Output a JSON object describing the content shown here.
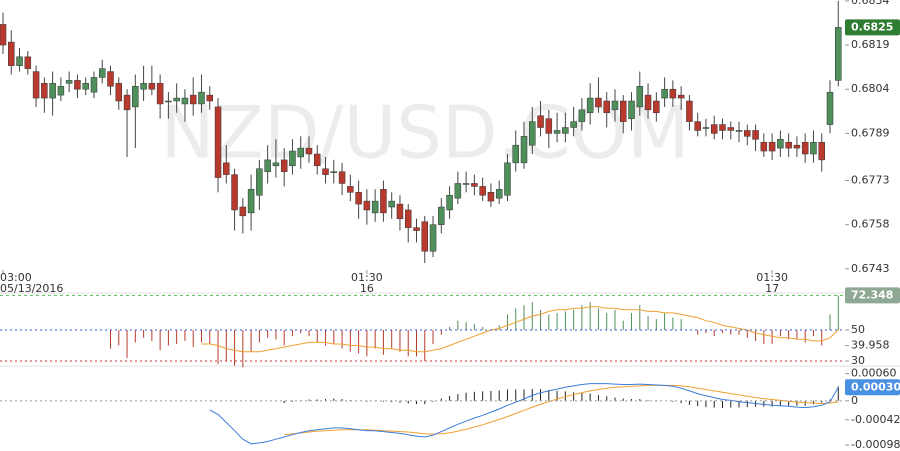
{
  "chart_data": [
    {
      "type": "candlestick",
      "watermark": "NZD/USD.COM",
      "up_color": "#4f8f5b",
      "down_color": "#b83a2e",
      "ylim": [
        0.67348,
        0.68343
      ],
      "yticks": [
        0.6834,
        0.6819,
        0.6804,
        0.6789,
        0.6773,
        0.6758,
        0.6743
      ],
      "current_value": 0.6825,
      "current_color": "#2e7d32",
      "xticks": [
        {
          "value": 0,
          "label": "03:00"
        },
        {
          "value": 44,
          "label": "01:30"
        },
        {
          "value": 93,
          "label": "01:30"
        }
      ],
      "xticks_date": [
        {
          "value": 0,
          "label": "05/13/2016"
        },
        {
          "value": 44,
          "label": "16"
        },
        {
          "value": 93,
          "label": "17"
        }
      ],
      "open": [
        0.6826,
        0.682,
        0.6812,
        0.6815,
        0.681,
        0.6806,
        0.6801,
        0.6802,
        0.6806,
        0.6807,
        0.6804,
        0.6803,
        0.6808,
        0.681,
        0.6806,
        0.6802,
        0.6798,
        0.6804,
        0.6806,
        0.6806,
        0.68,
        0.68,
        0.6799,
        0.6802,
        0.6799,
        0.6802,
        0.6798,
        0.6779,
        0.6775,
        0.6764,
        0.6762,
        0.6768,
        0.6776,
        0.6778,
        0.678,
        0.6778,
        0.6781,
        0.6784,
        0.6782,
        0.6777,
        0.6776,
        0.6776,
        0.6771,
        0.6769,
        0.6766,
        0.6762,
        0.677,
        0.6764,
        0.6765,
        0.6763,
        0.6757,
        0.6759,
        0.6749,
        0.6758,
        0.6763,
        0.6767,
        0.6772,
        0.6772,
        0.6771,
        0.6769,
        0.6767,
        0.6768,
        0.6779,
        0.6779,
        0.6785,
        0.6795,
        0.6794,
        0.6789,
        0.6789,
        0.6791,
        0.6793,
        0.6796,
        0.6801,
        0.68,
        0.6797,
        0.68,
        0.6794,
        0.6798,
        0.6802,
        0.68,
        0.6801,
        0.6804,
        0.6802,
        0.68,
        0.6793,
        0.6791,
        0.6792,
        0.6792,
        0.6791,
        0.679,
        0.679,
        0.679,
        0.6786,
        0.6786,
        0.6784,
        0.6786,
        0.6785,
        0.6786,
        0.6782,
        0.6786,
        0.6792,
        0.6807
      ],
      "high": [
        0.683,
        0.6824,
        0.6818,
        0.6817,
        0.6812,
        0.6808,
        0.681,
        0.6808,
        0.681,
        0.6809,
        0.6808,
        0.681,
        0.6814,
        0.6812,
        0.6808,
        0.6804,
        0.6809,
        0.6812,
        0.6812,
        0.6809,
        0.6803,
        0.6806,
        0.6804,
        0.6808,
        0.6809,
        0.6805,
        0.6801,
        0.6785,
        0.6777,
        0.6767,
        0.6775,
        0.678,
        0.6785,
        0.6787,
        0.6784,
        0.6787,
        0.6788,
        0.6788,
        0.6785,
        0.6781,
        0.678,
        0.6779,
        0.6775,
        0.6773,
        0.677,
        0.677,
        0.6773,
        0.6769,
        0.6768,
        0.6765,
        0.676,
        0.6761,
        0.6761,
        0.6767,
        0.6771,
        0.6776,
        0.6776,
        0.6775,
        0.6774,
        0.6772,
        0.6773,
        0.6782,
        0.679,
        0.6793,
        0.6798,
        0.68,
        0.6797,
        0.6796,
        0.6796,
        0.6798,
        0.6801,
        0.6806,
        0.6808,
        0.6803,
        0.6804,
        0.6802,
        0.6803,
        0.681,
        0.6806,
        0.6803,
        0.6808,
        0.6807,
        0.6805,
        0.6802,
        0.6796,
        0.6794,
        0.6795,
        0.6794,
        0.6793,
        0.6793,
        0.6792,
        0.6792,
        0.6789,
        0.6789,
        0.679,
        0.6789,
        0.6788,
        0.6789,
        0.679,
        0.6789,
        0.6807,
        0.6834
      ],
      "low": [
        0.6816,
        0.6809,
        0.681,
        0.6809,
        0.6798,
        0.6796,
        0.6795,
        0.68,
        0.6803,
        0.6801,
        0.6802,
        0.6801,
        0.6806,
        0.6802,
        0.6797,
        0.6781,
        0.6784,
        0.68,
        0.6802,
        0.6794,
        0.6794,
        0.6796,
        0.6793,
        0.6795,
        0.6796,
        0.6797,
        0.6769,
        0.6772,
        0.6756,
        0.6755,
        0.6756,
        0.6763,
        0.6772,
        0.6774,
        0.6771,
        0.6775,
        0.6777,
        0.6779,
        0.6775,
        0.6772,
        0.6772,
        0.6768,
        0.6766,
        0.676,
        0.6758,
        0.6759,
        0.6759,
        0.676,
        0.6756,
        0.6752,
        0.6752,
        0.6745,
        0.6747,
        0.6755,
        0.676,
        0.6765,
        0.6769,
        0.6768,
        0.6766,
        0.6764,
        0.6765,
        0.6766,
        0.6776,
        0.6777,
        0.6782,
        0.6788,
        0.6784,
        0.6786,
        0.6786,
        0.6788,
        0.679,
        0.6792,
        0.6796,
        0.6791,
        0.6793,
        0.6789,
        0.679,
        0.6795,
        0.6794,
        0.6793,
        0.6798,
        0.6798,
        0.6797,
        0.679,
        0.6788,
        0.6788,
        0.6787,
        0.6787,
        0.6787,
        0.6786,
        0.6785,
        0.6783,
        0.6781,
        0.678,
        0.6781,
        0.6781,
        0.6781,
        0.6779,
        0.6779,
        0.6776,
        0.6789,
        0.6805
      ],
      "close": [
        0.6819,
        0.6812,
        0.6815,
        0.6811,
        0.6801,
        0.6801,
        0.6806,
        0.6805,
        0.6807,
        0.6804,
        0.6806,
        0.6808,
        0.6811,
        0.6805,
        0.68,
        0.6797,
        0.6805,
        0.6806,
        0.6804,
        0.6799,
        0.68,
        0.6801,
        0.6801,
        0.6799,
        0.6803,
        0.68,
        0.6774,
        0.6775,
        0.6763,
        0.6761,
        0.677,
        0.6777,
        0.678,
        0.6779,
        0.6776,
        0.6783,
        0.6784,
        0.6782,
        0.6778,
        0.6775,
        0.6776,
        0.6772,
        0.6769,
        0.6765,
        0.6763,
        0.6766,
        0.6762,
        0.6766,
        0.676,
        0.6757,
        0.6756,
        0.6749,
        0.6758,
        0.6764,
        0.6768,
        0.6772,
        0.6772,
        0.6771,
        0.6768,
        0.6766,
        0.677,
        0.6779,
        0.6785,
        0.6788,
        0.6793,
        0.6791,
        0.6789,
        0.679,
        0.6791,
        0.6793,
        0.6797,
        0.6801,
        0.6798,
        0.6796,
        0.68,
        0.6793,
        0.68,
        0.6805,
        0.6797,
        0.6796,
        0.6804,
        0.6801,
        0.6801,
        0.6793,
        0.679,
        0.6791,
        0.6789,
        0.679,
        0.679,
        0.679,
        0.6788,
        0.6787,
        0.6783,
        0.6783,
        0.6787,
        0.6784,
        0.6784,
        0.6782,
        0.6786,
        0.678,
        0.6803,
        0.6825
      ]
    },
    {
      "type": "rsi",
      "ylim": [
        26.8,
        74.5
      ],
      "yticks": [
        50,
        39.958,
        30
      ],
      "tick_line_colors": [
        "#3355dd",
        null,
        "#cc3333"
      ],
      "current_value": 72.348,
      "current_color": "#8fa893",
      "up_color": "#4f8f5b",
      "down_color": "#b83a2e",
      "ma_color": "#f0a030",
      "values": [
        null,
        null,
        null,
        null,
        null,
        null,
        null,
        null,
        null,
        null,
        null,
        null,
        null,
        38,
        40,
        32,
        42,
        45,
        43,
        37,
        40,
        41,
        43,
        39,
        42,
        41,
        28,
        30,
        27,
        26,
        36,
        42,
        45,
        44,
        40,
        46,
        48,
        46,
        42,
        40,
        41,
        38,
        36,
        35,
        33,
        38,
        34,
        38,
        36,
        33,
        33,
        30,
        41,
        47,
        52,
        56,
        55,
        54,
        52,
        50,
        53,
        60,
        64,
        66,
        68,
        63,
        60,
        61,
        62,
        63,
        66,
        68,
        64,
        61,
        63,
        56,
        61,
        66,
        59,
        57,
        61,
        58,
        57,
        50,
        47,
        48,
        46,
        48,
        47,
        47,
        45,
        43,
        41,
        41,
        46,
        44,
        44,
        42,
        46,
        40,
        60,
        72.348
      ],
      "ma": [
        null,
        null,
        null,
        null,
        null,
        null,
        null,
        null,
        null,
        null,
        null,
        null,
        null,
        null,
        null,
        null,
        null,
        null,
        null,
        null,
        null,
        null,
        null,
        null,
        41,
        41,
        40,
        38,
        37,
        36,
        36,
        36,
        37,
        38,
        39,
        40,
        41,
        42,
        42,
        42,
        41,
        41,
        40,
        40,
        39,
        39,
        38,
        38,
        37,
        37,
        36,
        36,
        37,
        38,
        40,
        42,
        44,
        46,
        48,
        50,
        51,
        53,
        55,
        57,
        59,
        60,
        62,
        63,
        63,
        64,
        64,
        65,
        65,
        64,
        64,
        63,
        63,
        63,
        62,
        62,
        61,
        61,
        60,
        59,
        58,
        56,
        55,
        53,
        52,
        51,
        50,
        48,
        47,
        46,
        45,
        45,
        44,
        44,
        43,
        43,
        45,
        50
      ]
    },
    {
      "type": "macd",
      "ylim": [
        -0.00111,
        0.00077
      ],
      "yticks": [
        {
          "value": 0.0006,
          "label": "0.00060"
        },
        0,
        -0.00042,
        -0.00098
      ],
      "tick_line_colors": [
        null,
        "#999999",
        null,
        null
      ],
      "current_value": {
        "value": 0.0003,
        "label": "0.00030"
      },
      "current_color": "#4a90e2",
      "macd_color": "#3b7ddd",
      "signal_color": "#f0a030",
      "hist_color": "#222222",
      "macd": [
        null,
        null,
        null,
        null,
        null,
        null,
        null,
        null,
        null,
        null,
        null,
        null,
        null,
        null,
        null,
        null,
        null,
        null,
        null,
        null,
        null,
        null,
        null,
        null,
        null,
        -0.0002,
        -0.0003,
        -0.00048,
        -0.00066,
        -0.00085,
        -0.00095,
        -0.00093,
        -0.0009,
        -0.00085,
        -0.0008,
        -0.00075,
        -0.0007,
        -0.00066,
        -0.00064,
        -0.00062,
        -0.0006,
        -0.0006,
        -0.00062,
        -0.00064,
        -0.00066,
        -0.00066,
        -0.00068,
        -0.0007,
        -0.00072,
        -0.00075,
        -0.00078,
        -0.0008,
        -0.00076,
        -0.00068,
        -0.0006,
        -0.00052,
        -0.00045,
        -0.00038,
        -0.00032,
        -0.00025,
        -0.00018,
        -0.0001,
        -3e-05,
        4e-05,
        0.00012,
        0.00018,
        0.00022,
        0.00026,
        0.0003,
        0.00033,
        0.00036,
        0.00038,
        0.00038,
        0.00038,
        0.00037,
        0.00036,
        0.00036,
        0.00037,
        0.00036,
        0.00035,
        0.00034,
        0.00032,
        0.00028,
        0.00022,
        0.00016,
        0.00011,
        7e-05,
        3e-05,
        1e-05,
        -2e-05,
        -4e-05,
        -6e-05,
        -8e-05,
        -0.0001,
        -0.00011,
        -0.00012,
        -0.00014,
        -0.00015,
        -0.00013,
        -0.0001,
        -2e-05,
        0.0003
      ],
      "signal": [
        null,
        null,
        null,
        null,
        null,
        null,
        null,
        null,
        null,
        null,
        null,
        null,
        null,
        null,
        null,
        null,
        null,
        null,
        null,
        null,
        null,
        null,
        null,
        null,
        null,
        null,
        null,
        null,
        null,
        null,
        null,
        null,
        null,
        null,
        -0.00075,
        -0.00073,
        -0.00071,
        -0.00069,
        -0.00067,
        -0.00066,
        -0.00065,
        -0.00064,
        -0.00064,
        -0.00064,
        -0.00064,
        -0.00065,
        -0.00066,
        -0.00067,
        -0.00068,
        -0.00069,
        -0.00071,
        -0.00073,
        -0.00074,
        -0.00073,
        -0.00071,
        -0.00067,
        -0.00063,
        -0.00058,
        -0.00053,
        -0.00047,
        -0.00041,
        -0.00035,
        -0.00028,
        -0.00021,
        -0.00014,
        -8e-05,
        -2e-05,
        4e-05,
        9e-05,
        0.00014,
        0.00018,
        0.00022,
        0.00025,
        0.00028,
        0.0003,
        0.00031,
        0.00032,
        0.00033,
        0.00034,
        0.00034,
        0.00034,
        0.00034,
        0.00033,
        0.00031,
        0.00028,
        0.00025,
        0.00022,
        0.00019,
        0.00016,
        0.00013,
        0.0001,
        7e-05,
        5e-05,
        3e-05,
        1e-05,
        -1e-05,
        -3e-05,
        -4e-05,
        -5e-05,
        -6e-05,
        -5e-05,
        -2e-05
      ],
      "histogram": [
        null,
        null,
        null,
        null,
        null,
        null,
        null,
        null,
        null,
        null,
        null,
        null,
        null,
        null,
        null,
        null,
        null,
        null,
        null,
        null,
        null,
        null,
        null,
        null,
        null,
        null,
        null,
        null,
        null,
        null,
        null,
        null,
        null,
        null,
        -5e-05,
        -2e-05,
        1e-05,
        3e-05,
        3e-05,
        4e-05,
        5e-05,
        4e-05,
        2e-05,
        0,
        -2e-05,
        -1e-05,
        -2e-05,
        -3e-05,
        -4e-05,
        -6e-05,
        -7e-05,
        -7e-05,
        -2e-05,
        5e-05,
        0.00011,
        0.00015,
        0.00018,
        0.0002,
        0.00021,
        0.00022,
        0.00023,
        0.00025,
        0.00025,
        0.00025,
        0.00026,
        0.00026,
        0.00024,
        0.00022,
        0.00021,
        0.00019,
        0.00018,
        0.00016,
        0.00013,
        0.0001,
        7e-05,
        5e-05,
        4e-05,
        4e-05,
        2e-05,
        1e-05,
        0,
        -2e-05,
        -5e-05,
        -9e-05,
        -0.00012,
        -0.00014,
        -0.00015,
        -0.00016,
        -0.00015,
        -0.00015,
        -0.00014,
        -0.00013,
        -0.00013,
        -0.00013,
        -0.00012,
        -0.00011,
        -0.00011,
        -0.00011,
        -8e-05,
        -4e-05,
        3e-05,
        0.00032
      ]
    }
  ]
}
